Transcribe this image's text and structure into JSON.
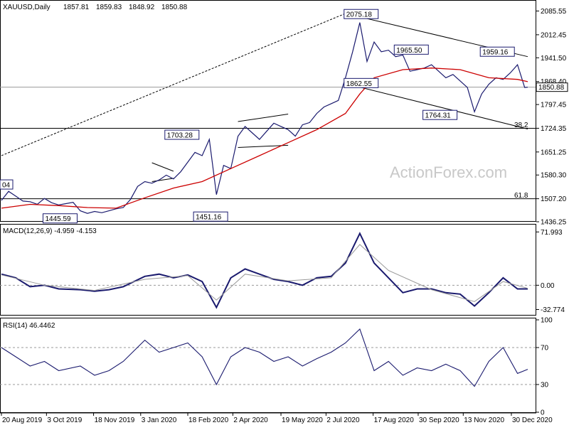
{
  "chart_data": [
    {
      "type": "line",
      "panel": "price",
      "title": "XAUUSD,Daily",
      "ohlc_header": [
        "1857.81",
        "1859.83",
        "1848.92",
        "1850.88"
      ],
      "last_price": 1850.88,
      "last_price_label": "1850.88",
      "ylim": [
        1436.25,
        2102
      ],
      "ytick_values": [
        1436.25,
        1507.2,
        1580.3,
        1651.25,
        1724.35,
        1797.45,
        1868.4,
        1941.5,
        2012.45,
        2085.55
      ],
      "ytick_labels": [
        "1436.25",
        "1507.20",
        "1580.30",
        "1651.25",
        "1724.35",
        "1797.45",
        "1868.40",
        "1941.50",
        "2012.45",
        "2085.55"
      ],
      "watermark": "ActionForex.com",
      "series": [
        {
          "type": "ohlc_bars_close",
          "color": "#1a1a6e",
          "x": [
            "2019-08-20",
            "2019-08-27",
            "2019-09-03",
            "2019-09-10",
            "2019-09-17",
            "2019-09-24",
            "2019-10-01",
            "2019-10-08",
            "2019-10-15",
            "2019-10-22",
            "2019-10-29",
            "2019-11-05",
            "2019-11-12",
            "2019-11-19",
            "2019-11-26",
            "2019-12-03",
            "2019-12-10",
            "2019-12-17",
            "2019-12-24",
            "2019-12-31",
            "2020-01-07",
            "2020-01-14",
            "2020-01-21",
            "2020-01-28",
            "2020-02-04",
            "2020-02-11",
            "2020-02-18",
            "2020-02-25",
            "2020-03-03",
            "2020-03-10",
            "2020-03-17",
            "2020-03-24",
            "2020-03-31",
            "2020-04-07",
            "2020-04-14",
            "2020-04-21",
            "2020-04-28",
            "2020-05-05",
            "2020-05-12",
            "2020-05-19",
            "2020-05-26",
            "2020-06-02",
            "2020-06-09",
            "2020-06-16",
            "2020-06-23",
            "2020-06-30",
            "2020-07-07",
            "2020-07-14",
            "2020-07-21",
            "2020-07-28",
            "2020-08-04",
            "2020-08-11",
            "2020-08-18",
            "2020-08-25",
            "2020-09-01",
            "2020-09-08",
            "2020-09-15",
            "2020-09-22",
            "2020-09-29",
            "2020-10-06",
            "2020-10-13",
            "2020-10-20",
            "2020-10-27",
            "2020-11-03",
            "2020-11-10",
            "2020-11-17",
            "2020-11-24",
            "2020-12-01",
            "2020-12-08",
            "2020-12-15",
            "2020-12-22",
            "2020-12-29",
            "2021-01-05",
            "2021-01-12",
            "2021-01-15"
          ],
          "values": [
            1502,
            1530,
            1515,
            1500,
            1498,
            1490,
            1508,
            1495,
            1488,
            1492,
            1496,
            1470,
            1462,
            1468,
            1464,
            1470,
            1476,
            1480,
            1505,
            1545,
            1560,
            1555,
            1565,
            1580,
            1568,
            1590,
            1620,
            1650,
            1640,
            1690,
            1520,
            1610,
            1600,
            1700,
            1730,
            1710,
            1690,
            1715,
            1740,
            1730,
            1720,
            1700,
            1735,
            1742,
            1770,
            1790,
            1800,
            1810,
            1880,
            1960,
            2050,
            1930,
            1990,
            1960,
            1965,
            1945,
            1950,
            1900,
            1905,
            1910,
            1920,
            1900,
            1880,
            1890,
            1870,
            1850,
            1775,
            1830,
            1860,
            1880,
            1875,
            1895,
            1920,
            1850,
            1850.88
          ]
        },
        {
          "type": "moving_average",
          "color": "#cc0000",
          "x": [
            "2019-08-20",
            "2019-09-17",
            "2019-10-15",
            "2019-11-12",
            "2019-12-10",
            "2020-01-07",
            "2020-02-04",
            "2020-03-03",
            "2020-03-31",
            "2020-04-28",
            "2020-05-26",
            "2020-06-23",
            "2020-07-21",
            "2020-08-04",
            "2020-08-18",
            "2020-09-15",
            "2020-10-13",
            "2020-11-10",
            "2020-12-08",
            "2021-01-05",
            "2021-01-15"
          ],
          "values": [
            1478,
            1490,
            1486,
            1480,
            1478,
            1510,
            1540,
            1560,
            1600,
            1640,
            1680,
            1720,
            1770,
            1830,
            1880,
            1905,
            1910,
            1905,
            1880,
            1875,
            1868
          ]
        }
      ],
      "annotations": [
        {
          "label": "1445.59",
          "x": "2019-10-01",
          "y": 1445.59,
          "box": true
        },
        {
          "label": "1703.28",
          "x": "2020-01-28",
          "y": 1703.28,
          "box": true
        },
        {
          "label": "1451.16",
          "x": "2020-02-25",
          "y": 1451.16,
          "box": true
        },
        {
          "label": "2075.18",
          "x": "2020-07-21",
          "y": 2075.18,
          "box": true
        },
        {
          "label": "1862.55",
          "x": "2020-07-21",
          "y": 1862.55,
          "box": true
        },
        {
          "label": "1965.50",
          "x": "2020-09-08",
          "y": 1965.5,
          "box": true
        },
        {
          "label": "1764.31",
          "x": "2020-10-06",
          "y": 1764.31,
          "box": true
        },
        {
          "label": "1959.16",
          "x": "2020-12-01",
          "y": 1959.16,
          "box": true
        },
        {
          "label": "04",
          "x": "2019-08-20",
          "y": 1550,
          "box": true
        },
        {
          "label": "38.2",
          "x": "2021-01-15",
          "y": 1735,
          "box": false
        },
        {
          "label": "61.8",
          "x": "2021-01-15",
          "y": 1518,
          "box": false
        }
      ],
      "horizontal_lines": [
        {
          "y": 1724.35,
          "color": "#000000"
        },
        {
          "y": 1507.2,
          "color": "#000000"
        },
        {
          "y": 1850.88,
          "color": "#999999"
        }
      ],
      "trend_lines": [
        {
          "style": "dashed",
          "x1": "2019-08-20",
          "y1": 1640,
          "x2": "2020-07-21",
          "y2": 2078
        },
        {
          "style": "solid",
          "x1": "2020-07-21",
          "y1": 2078,
          "x2": "2021-01-15",
          "y2": 1945
        },
        {
          "style": "solid",
          "x1": "2020-07-21",
          "y1": 1862,
          "x2": "2021-01-15",
          "y2": 1722
        },
        {
          "style": "solid",
          "x1": "2020-01-14",
          "y1": 1618,
          "x2": "2020-02-04",
          "y2": 1592
        },
        {
          "style": "solid",
          "x1": "2020-01-14",
          "y1": 1560,
          "x2": "2020-02-04",
          "y2": 1570
        },
        {
          "style": "solid",
          "x1": "2020-04-07",
          "y1": 1745,
          "x2": "2020-05-26",
          "y2": 1768
        },
        {
          "style": "solid",
          "x1": "2020-04-07",
          "y1": 1665,
          "x2": "2020-05-26",
          "y2": 1672
        }
      ]
    },
    {
      "type": "line",
      "panel": "macd",
      "title": "MACD(12,26,9) -4.959 -4.153",
      "ylim": [
        -40,
        80
      ],
      "ytick_values": [
        71.993,
        0,
        -32.774
      ],
      "ytick_labels": [
        "71.993",
        "0.00",
        "-32.774"
      ],
      "series": [
        {
          "type": "macd_line",
          "color": "#1a1a6e",
          "x": [
            "2019-08-20",
            "2019-09-03",
            "2019-09-17",
            "2019-10-01",
            "2019-10-15",
            "2019-11-05",
            "2019-11-19",
            "2019-12-03",
            "2019-12-17",
            "2020-01-07",
            "2020-01-21",
            "2020-02-04",
            "2020-02-18",
            "2020-03-03",
            "2020-03-17",
            "2020-03-31",
            "2020-04-14",
            "2020-04-28",
            "2020-05-12",
            "2020-05-26",
            "2020-06-09",
            "2020-06-23",
            "2020-07-07",
            "2020-07-21",
            "2020-08-04",
            "2020-08-18",
            "2020-09-01",
            "2020-09-15",
            "2020-09-29",
            "2020-10-13",
            "2020-10-27",
            "2020-11-10",
            "2020-11-24",
            "2020-12-08",
            "2020-12-22",
            "2021-01-05",
            "2021-01-15"
          ],
          "values": [
            15,
            10,
            -2,
            0,
            -5,
            -6,
            -8,
            -6,
            -2,
            12,
            15,
            10,
            14,
            5,
            -30,
            10,
            22,
            15,
            8,
            5,
            0,
            10,
            12,
            30,
            70,
            30,
            10,
            -10,
            -5,
            -5,
            -10,
            -12,
            -28,
            -10,
            10,
            -5,
            -4.959
          ]
        },
        {
          "type": "signal_line",
          "color": "#999999",
          "x": [
            "2019-08-20",
            "2019-10-01",
            "2019-11-19",
            "2020-01-07",
            "2020-02-18",
            "2020-03-17",
            "2020-04-14",
            "2020-05-26",
            "2020-07-07",
            "2020-08-04",
            "2020-09-01",
            "2020-10-13",
            "2020-11-24",
            "2020-12-22",
            "2021-01-15"
          ],
          "values": [
            14,
            0,
            -7,
            8,
            13,
            -20,
            15,
            6,
            10,
            55,
            20,
            -6,
            -22,
            5,
            -4.153
          ]
        }
      ]
    },
    {
      "type": "line",
      "panel": "rsi",
      "title": "RSI(14) 46.4462",
      "ylim": [
        0,
        100
      ],
      "ytick_values": [
        100,
        70,
        30,
        0
      ],
      "ytick_labels": [
        "100",
        "70",
        "30",
        "0"
      ],
      "levels": [
        70,
        30
      ],
      "series": [
        {
          "type": "rsi_line",
          "color": "#1a1a6e",
          "x": [
            "2019-08-20",
            "2019-09-03",
            "2019-09-17",
            "2019-10-01",
            "2019-10-15",
            "2019-11-05",
            "2019-11-19",
            "2019-12-03",
            "2019-12-17",
            "2020-01-07",
            "2020-01-21",
            "2020-02-04",
            "2020-02-18",
            "2020-03-03",
            "2020-03-17",
            "2020-03-31",
            "2020-04-14",
            "2020-04-28",
            "2020-05-12",
            "2020-05-26",
            "2020-06-09",
            "2020-06-23",
            "2020-07-07",
            "2020-07-21",
            "2020-08-04",
            "2020-08-18",
            "2020-09-01",
            "2020-09-15",
            "2020-09-29",
            "2020-10-13",
            "2020-10-27",
            "2020-11-10",
            "2020-11-24",
            "2020-12-08",
            "2020-12-22",
            "2021-01-05",
            "2021-01-15"
          ],
          "values": [
            70,
            60,
            50,
            55,
            45,
            50,
            40,
            45,
            55,
            78,
            65,
            70,
            75,
            60,
            30,
            60,
            70,
            65,
            55,
            60,
            50,
            58,
            65,
            75,
            90,
            45,
            55,
            40,
            48,
            45,
            52,
            45,
            28,
            55,
            70,
            42,
            46.4462
          ]
        }
      ]
    }
  ],
  "x_axis": {
    "labels": [
      "20 Aug 2019",
      "3 Oct 2019",
      "18 Nov 2019",
      "3 Jan 2020",
      "18 Feb 2020",
      "2 Apr 2020",
      "19 May 2020",
      "2 Jul 2020",
      "17 Aug 2020",
      "30 Sep 2020",
      "13 Nov 2020",
      "30 Dec 2020"
    ],
    "dates": [
      "2019-08-20",
      "2019-10-03",
      "2019-11-18",
      "2020-01-03",
      "2020-02-18",
      "2020-04-02",
      "2020-05-19",
      "2020-07-02",
      "2020-08-17",
      "2020-09-30",
      "2020-11-13",
      "2020-12-30"
    ],
    "range": [
      "2019-08-20",
      "2021-01-15"
    ]
  },
  "colors": {
    "price": "#1a1a6e",
    "ma": "#cc0000",
    "signal": "#999999",
    "grid_line": "#000000",
    "last_price_bg": "#ffffff"
  }
}
